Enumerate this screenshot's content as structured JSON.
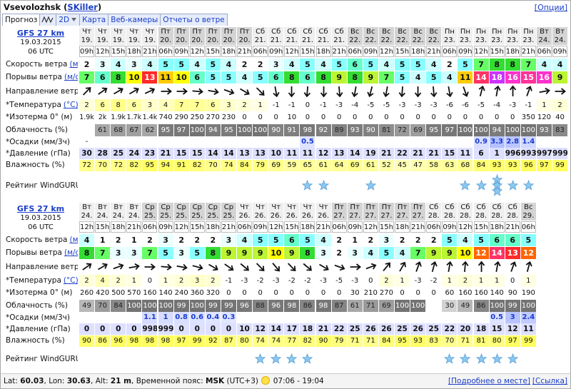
{
  "header": {
    "title_prefix": "Vsevolozhsk (",
    "user": "SKiller",
    "title_suffix": ")",
    "options": "[Опции]"
  },
  "tabs": [
    "Прогноз",
    "2D",
    "Карта",
    "Веб-камеры",
    "Отчеты о ветре"
  ],
  "row_labels": {
    "speed": "Скорость ветра",
    "gusts": "Порывы ветра",
    "unit_ms": "(м/с)",
    "direction": "Направление ветра",
    "temperature": "*Температура",
    "unit_c": "(°C)",
    "isotherm": "*Изотерма 0° (м)",
    "clouds": "Облачность (%)",
    "precipitation": "*Осадки (мм/3ч)",
    "pressure": "*Давление (гПа)",
    "humidity": "Влажность (%)",
    "rating": "Рейтинг WindGURU"
  },
  "wind_colors": [
    "#ffffff",
    "#ffffff",
    "#ffffff",
    "#eaffff",
    "#ccffff",
    "#88ffff",
    "#66ffcc",
    "#66ff66",
    "#33dd33",
    "#bbf533",
    "#ffff00",
    "#ffcc00",
    "#ff6600",
    "#ff2a2a",
    "#ff3366",
    "#ff3399",
    "#ff33cc",
    "#ee33ee",
    "#cc33ff"
  ],
  "star_color": "#8cc8f0",
  "forecasts": [
    {
      "model": "GFS 27 km",
      "date": "19.03.2015",
      "run": "06 UTC",
      "days": [
        "Чт",
        "Чт",
        "Чт",
        "Чт",
        "Чт",
        "Пт",
        "Пт",
        "Пт",
        "Пт",
        "Пт",
        "Пт",
        "Сб",
        "Сб",
        "Сб",
        "Сб",
        "Сб",
        "Сб",
        "Вс",
        "Вс",
        "Вс",
        "Вс",
        "Вс",
        "Вс",
        "Пн",
        "Пн",
        "Пн",
        "Пн",
        "Пн",
        "Пн",
        "Вт",
        "Вт"
      ],
      "dates": [
        "19.",
        "19.",
        "19.",
        "19.",
        "19.",
        "20.",
        "20.",
        "20.",
        "20.",
        "20.",
        "20.",
        "21.",
        "21.",
        "21.",
        "21.",
        "21.",
        "21.",
        "22.",
        "22.",
        "22.",
        "22.",
        "22.",
        "22.",
        "23.",
        "23.",
        "23.",
        "23.",
        "23.",
        "23.",
        "24.",
        "24."
      ],
      "hours": [
        "09h",
        "12h",
        "15h",
        "18h",
        "21h",
        "06h",
        "09h",
        "12h",
        "15h",
        "18h",
        "21h",
        "06h",
        "09h",
        "12h",
        "15h",
        "18h",
        "21h",
        "06h",
        "09h",
        "12h",
        "15h",
        "18h",
        "21h",
        "06h",
        "09h",
        "12h",
        "15h",
        "18h",
        "21h",
        "06h",
        "09h"
      ],
      "speed": [
        2,
        3,
        4,
        3,
        4,
        5,
        5,
        4,
        5,
        4,
        2,
        2,
        3,
        4,
        5,
        4,
        5,
        6,
        5,
        4,
        5,
        5,
        4,
        2,
        5,
        7,
        8,
        8,
        7,
        4,
        4
      ],
      "gusts": [
        7,
        6,
        8,
        10,
        13,
        11,
        10,
        6,
        5,
        5,
        4,
        5,
        6,
        8,
        6,
        8,
        9,
        8,
        9,
        7,
        5,
        4,
        5,
        4,
        11,
        14,
        18,
        16,
        15,
        16,
        9
      ],
      "direction": [
        225,
        235,
        240,
        240,
        245,
        270,
        270,
        275,
        280,
        290,
        300,
        315,
        350,
        0,
        5,
        0,
        355,
        10,
        15,
        10,
        5,
        0,
        355,
        350,
        340,
        195,
        190,
        180,
        200,
        260,
        270
      ],
      "temperature": [
        2,
        6,
        8,
        6,
        3,
        4,
        7,
        7,
        6,
        3,
        2,
        1,
        -1,
        -1,
        0,
        -1,
        -3,
        -4,
        -5,
        -5,
        -3,
        -3,
        -3,
        -6,
        -6,
        -5,
        -4,
        -3,
        -1,
        1,
        2
      ],
      "isotherm": {
        "values": [
          1900,
          2000,
          1900,
          1700,
          1400,
          740,
          290,
          250,
          270,
          230,
          0,
          0,
          0,
          10,
          0,
          0,
          0,
          0,
          0,
          0,
          0,
          0,
          0,
          0,
          0,
          0,
          0,
          0,
          350,
          120,
          40
        ],
        "value_labels": [
          "1.9k",
          "2k",
          "1.9k",
          "1.7k",
          "1.4k",
          "740",
          "290",
          "250",
          "270",
          "230",
          "0",
          "0",
          "0",
          "10",
          "0",
          "0",
          "0",
          "0",
          "0",
          "0",
          "0",
          "0",
          "0",
          "0",
          "0",
          "0",
          "0",
          "0",
          "350",
          "120",
          "40"
        ]
      },
      "clouds": [
        null,
        61,
        68,
        67,
        62,
        95,
        97,
        100,
        94,
        95,
        100,
        100,
        90,
        91,
        98,
        92,
        89,
        93,
        90,
        81,
        72,
        69,
        95,
        97,
        100,
        100,
        94,
        100,
        100,
        93,
        83
      ],
      "precipitation": {
        "values": [
          null,
          null,
          null,
          null,
          null,
          null,
          null,
          null,
          null,
          null,
          null,
          null,
          null,
          null,
          0.5,
          null,
          null,
          null,
          null,
          null,
          null,
          null,
          null,
          null,
          null,
          0.9,
          3.3,
          2.8,
          1.4,
          null,
          null
        ],
        "value_labels": [
          "-",
          null,
          null,
          null,
          null,
          null,
          null,
          null,
          null,
          null,
          null,
          null,
          null,
          null,
          null,
          null,
          null,
          null,
          null,
          null,
          null,
          null,
          null,
          null,
          null,
          null,
          null,
          null,
          null,
          null,
          null
        ]
      },
      "pressure": {
        "values": [
          1030,
          1028,
          1025,
          1024,
          1023,
          1021,
          1015,
          1015,
          1014,
          1014,
          1013,
          1013,
          1010,
          1011,
          1011,
          1012,
          1013,
          1014,
          1019,
          1021,
          1022,
          1021,
          1021,
          1015,
          1011,
          1006,
          1001,
          996,
          993,
          997,
          999
        ],
        "value_labels": [
          "30",
          "28",
          "25",
          "24",
          "23",
          "21",
          "15",
          "15",
          "14",
          "14",
          "13",
          "13",
          "10",
          "11",
          "11",
          "12",
          "13",
          "14",
          "19",
          "21",
          "22",
          "21",
          "21",
          "15",
          "11",
          "6",
          "1",
          "996",
          "993",
          "997",
          "999"
        ]
      },
      "humidity": [
        72,
        70,
        72,
        82,
        95,
        94,
        91,
        82,
        70,
        74,
        84,
        79,
        69,
        59,
        65,
        61,
        64,
        69,
        61,
        52,
        45,
        47,
        58,
        63,
        68,
        84,
        93,
        93,
        96,
        97,
        99
      ],
      "rating": [
        0,
        0,
        0,
        0,
        0,
        0,
        0,
        0,
        0,
        0,
        0,
        0,
        0,
        0,
        1,
        1,
        0,
        0,
        1,
        0,
        0,
        0,
        0,
        0,
        1,
        1,
        3,
        1,
        1,
        0,
        0
      ]
    },
    {
      "model": "GFS 27 km",
      "date": "19.03.2015",
      "run": "06 UTC",
      "days": [
        "Вт",
        "Вт",
        "Вт",
        "Вт",
        "Ср",
        "Ср",
        "Ср",
        "Ср",
        "Ср",
        "Ср",
        "Чт",
        "Чт",
        "Чт",
        "Чт",
        "Чт",
        "Чт",
        "Пт",
        "Пт",
        "Пт",
        "Пт",
        "Пт",
        "Пт",
        "Сб",
        "Сб",
        "Сб",
        "Сб",
        "Сб",
        "Сб",
        "Вс"
      ],
      "dates": [
        "24.",
        "24.",
        "24.",
        "24.",
        "25.",
        "25.",
        "25.",
        "25.",
        "25.",
        "25.",
        "26.",
        "26.",
        "26.",
        "26.",
        "26.",
        "26.",
        "27.",
        "27.",
        "27.",
        "27.",
        "27.",
        "27.",
        "28.",
        "28.",
        "28.",
        "28.",
        "28.",
        "28.",
        "29."
      ],
      "hours": [
        "12h",
        "15h",
        "18h",
        "21h",
        "06h",
        "09h",
        "12h",
        "15h",
        "18h",
        "21h",
        "06h",
        "09h",
        "12h",
        "15h",
        "18h",
        "21h",
        "06h",
        "09h",
        "12h",
        "15h",
        "18h",
        "21h",
        "06h",
        "09h",
        "12h",
        "15h",
        "18h",
        "21h",
        "06h"
      ],
      "speed": [
        4,
        1,
        2,
        1,
        2,
        3,
        2,
        2,
        2,
        3,
        4,
        5,
        5,
        6,
        5,
        4,
        2,
        1,
        2,
        3,
        2,
        2,
        2,
        5,
        4,
        5,
        6,
        6,
        5
      ],
      "gusts": [
        8,
        7,
        3,
        3,
        7,
        5,
        3,
        5,
        8,
        9,
        9,
        9,
        10,
        9,
        8,
        3,
        2,
        3,
        4,
        5,
        4,
        7,
        9,
        9,
        10,
        12,
        14,
        13,
        12
      ],
      "direction": [
        235,
        240,
        250,
        260,
        270,
        275,
        280,
        285,
        300,
        305,
        310,
        315,
        320,
        315,
        310,
        300,
        290,
        270,
        250,
        220,
        210,
        200,
        195,
        190,
        185,
        180,
        190,
        200,
        195
      ],
      "temperature": [
        2,
        4,
        2,
        1,
        0,
        1,
        2,
        3,
        2,
        -1,
        -3,
        -2,
        -3,
        -2,
        -2,
        -3,
        -5,
        -3,
        0,
        2,
        1,
        -3,
        -2,
        1,
        2,
        1,
        1,
        0,
        1
      ],
      "isotherm": {
        "values": [
          260,
          420,
          500,
          570,
          160,
          140,
          240,
          360,
          320,
          0,
          0,
          0,
          0,
          0,
          0,
          0,
          0,
          30,
          210,
          270,
          0,
          0,
          0,
          60,
          160,
          160,
          140,
          90,
          190
        ]
      },
      "clouds": [
        49,
        70,
        84,
        100,
        100,
        100,
        99,
        100,
        99,
        99,
        96,
        88,
        96,
        98,
        86,
        98,
        87,
        61,
        71,
        69,
        100,
        100,
        null,
        30,
        49,
        86,
        100,
        99,
        100
      ],
      "precipitation": {
        "values": [
          null,
          null,
          null,
          null,
          1.1,
          1,
          0.8,
          0.6,
          0.4,
          0.3,
          null,
          null,
          null,
          null,
          null,
          null,
          null,
          null,
          null,
          null,
          null,
          null,
          null,
          null,
          null,
          null,
          0.5,
          3,
          2.4
        ]
      },
      "pressure": {
        "values": [
          1000,
          1000,
          1000,
          1000,
          998,
          999,
          1000,
          1000,
          1000,
          1000,
          1010,
          1012,
          1014,
          1017,
          1018,
          1021,
          1022,
          1025,
          1026,
          1026,
          1025,
          1026,
          1025,
          1022,
          1020,
          1018,
          1015,
          1012,
          1011
        ],
        "value_labels": [
          "0",
          "0",
          "0",
          "0",
          "998",
          "999",
          "0",
          "0",
          "0",
          "0",
          "10",
          "12",
          "14",
          "17",
          "18",
          "21",
          "22",
          "25",
          "26",
          "26",
          "25",
          "26",
          "25",
          "22",
          "20",
          "18",
          "15",
          "12",
          "11"
        ]
      },
      "humidity": [
        90,
        86,
        96,
        98,
        98,
        98,
        97,
        99,
        92,
        87,
        80,
        74,
        74,
        77,
        82,
        90,
        79,
        71,
        71,
        84,
        95,
        93,
        83,
        70,
        71,
        81,
        80,
        97,
        99
      ],
      "rating": [
        0,
        0,
        0,
        0,
        0,
        0,
        0,
        0,
        0,
        0,
        0,
        1,
        1,
        1,
        1,
        0,
        0,
        0,
        0,
        0,
        0,
        0,
        0,
        1,
        1,
        1,
        1,
        1,
        0
      ]
    }
  ],
  "footer": {
    "lat_label": "Lat:",
    "lat": 60.03,
    "lon_label": ", Lon:",
    "lon": 30.63,
    "alt_label": ", Alt:",
    "alt": "21 m",
    "tz_label": ", Временной пояс:",
    "tz": "MSK",
    "utc": "(UTC+3)",
    "sun": "07:06 - 19:04",
    "details": "[Подробнее о месте]",
    "link": "[Ссылка]"
  }
}
